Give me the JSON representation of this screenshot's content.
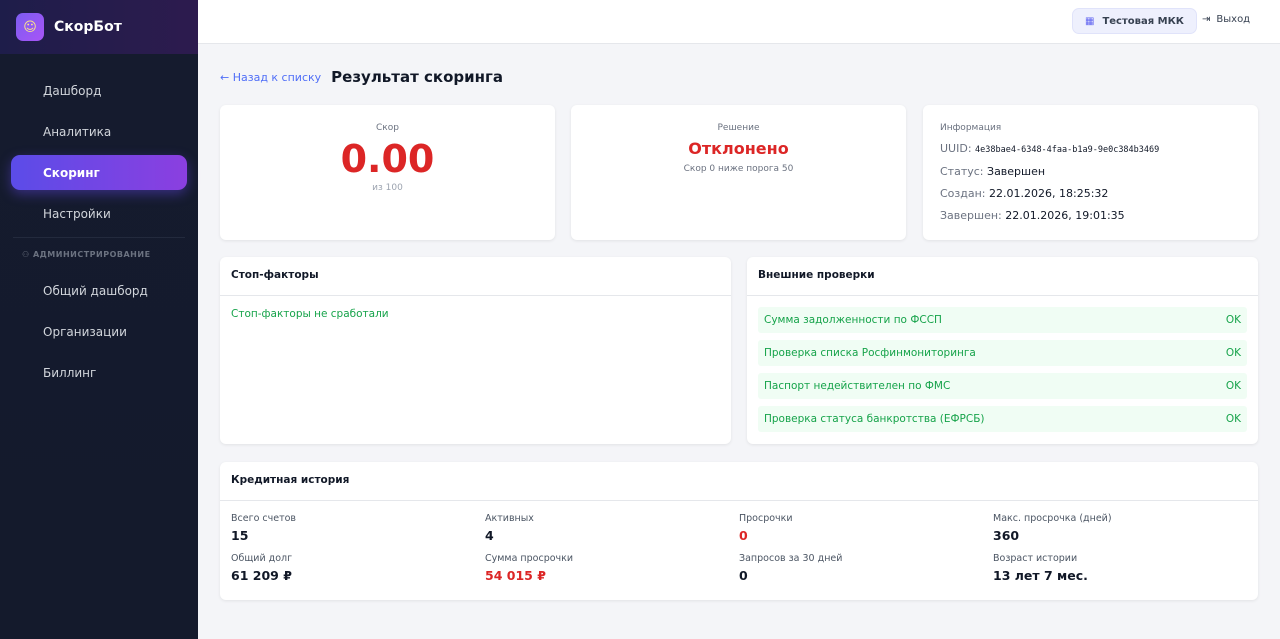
{
  "app": {
    "name": "СкорБот",
    "logo_icon": "robot-icon"
  },
  "sidebar": {
    "items": [
      {
        "label": "Дашборд"
      },
      {
        "label": "Аналитика"
      },
      {
        "label": "Скоринг",
        "active": true
      },
      {
        "label": "Настройки"
      }
    ],
    "admin_section": "АДМИНИСТРИРОВАНИЕ",
    "admin_items": [
      {
        "label": "Общий дашборд"
      },
      {
        "label": "Организации"
      },
      {
        "label": "Биллинг"
      }
    ]
  },
  "topbar": {
    "org": "Тестовая МКК",
    "logout": "Выход"
  },
  "page": {
    "back": "← Назад к списку",
    "title": "Результат скоринга"
  },
  "score": {
    "label": "Скор",
    "value": "0.00",
    "max": "из 100"
  },
  "decision": {
    "label": "Решение",
    "value": "Отклонено",
    "note": "Скор 0 ниже порога 50"
  },
  "info": {
    "label": "Информация",
    "uuid_label": "UUID:",
    "uuid": "4e38bae4-6348-4faa-b1a9-9e0c384b3469",
    "status_label": "Статус:",
    "status": "Завершен",
    "created_label": "Создан:",
    "created": "22.01.2026, 18:25:32",
    "finished_label": "Завершен:",
    "finished": "22.01.2026, 19:01:35"
  },
  "stop": {
    "title": "Стоп-факторы",
    "text": "Стоп-факторы не сработали"
  },
  "checks": {
    "title": "Внешние проверки",
    "items": [
      {
        "name": "Сумма задолженности по ФССП",
        "status": "OK"
      },
      {
        "name": "Проверка списка Росфинмониторинга",
        "status": "OK"
      },
      {
        "name": "Паспорт недействителен по ФМС",
        "status": "OK"
      },
      {
        "name": "Проверка статуса банкротства (ЕФРСБ)",
        "status": "OK"
      }
    ]
  },
  "credit": {
    "title": "Кредитная история",
    "stats": [
      {
        "k": "Всего счетов",
        "v": "15"
      },
      {
        "k": "Активных",
        "v": "4"
      },
      {
        "k": "Просрочки",
        "v": "0",
        "red": true
      },
      {
        "k": "Макс. просрочка (дней)",
        "v": "360"
      },
      {
        "k": "Общий долг",
        "v": "61 209 ₽"
      },
      {
        "k": "Сумма просрочки",
        "v": "54 015 ₽",
        "red": true
      },
      {
        "k": "Запросов за 30 дней",
        "v": "0"
      },
      {
        "k": "Возраст истории",
        "v": "13 лет 7 мес."
      }
    ]
  },
  "colors": {
    "accent": "#5b4ce8",
    "danger": "#dc2626",
    "success": "#16a34a"
  }
}
